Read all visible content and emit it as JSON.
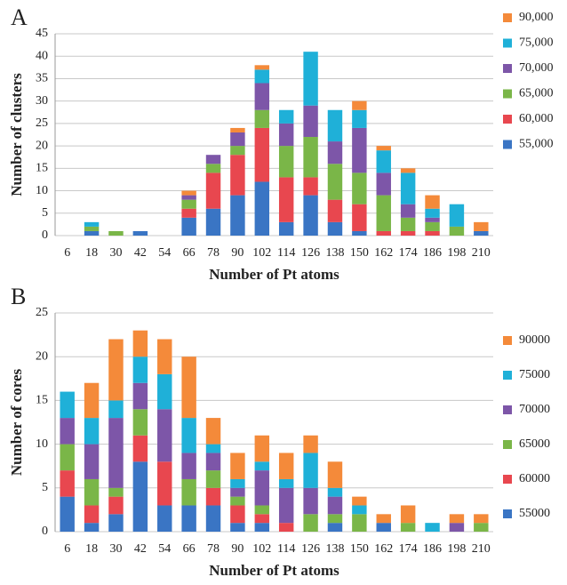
{
  "chart_data": [
    {
      "type": "bar",
      "stacked": true,
      "label": "A",
      "ylabel": "Number of clusters",
      "xlabel": "Number of Pt atoms",
      "categories": [
        "6",
        "18",
        "30",
        "42",
        "54",
        "66",
        "78",
        "90",
        "102",
        "114",
        "126",
        "138",
        "150",
        "162",
        "174",
        "186",
        "198",
        "210"
      ],
      "ylim": [
        0,
        45
      ],
      "yticks": [
        0,
        5,
        10,
        15,
        20,
        25,
        30,
        35,
        40,
        45
      ],
      "grid": true,
      "series": [
        {
          "name": "55,000",
          "color": "#3a75c4",
          "values": [
            0,
            1,
            0,
            1,
            0,
            4,
            6,
            9,
            12,
            3,
            9,
            3,
            1,
            0,
            0,
            0,
            0,
            1
          ]
        },
        {
          "name": "60,000",
          "color": "#e8474f",
          "values": [
            0,
            0,
            0,
            0,
            0,
            2,
            8,
            9,
            12,
            10,
            4,
            5,
            6,
            1,
            1,
            1,
            0,
            0
          ]
        },
        {
          "name": "65,000",
          "color": "#7ab648",
          "values": [
            0,
            1,
            1,
            0,
            0,
            2,
            2,
            2,
            4,
            7,
            9,
            8,
            7,
            8,
            3,
            2,
            2,
            0
          ]
        },
        {
          "name": "70,000",
          "color": "#7d56a8",
          "values": [
            0,
            0,
            0,
            0,
            0,
            1,
            2,
            3,
            6,
            5,
            7,
            5,
            10,
            5,
            3,
            1,
            0,
            0
          ]
        },
        {
          "name": "75,000",
          "color": "#1fb0d8",
          "values": [
            0,
            1,
            0,
            0,
            0,
            0,
            0,
            0,
            3,
            3,
            12,
            7,
            4,
            5,
            7,
            2,
            5,
            0
          ]
        },
        {
          "name": "90,000",
          "color": "#f48a3a",
          "values": [
            0,
            0,
            0,
            0,
            0,
            1,
            0,
            1,
            1,
            0,
            0,
            0,
            2,
            1,
            1,
            3,
            0,
            2
          ]
        }
      ]
    },
    {
      "type": "bar",
      "stacked": true,
      "label": "B",
      "ylabel": "Number of cores",
      "xlabel": "Number of Pt atoms",
      "categories": [
        "6",
        "18",
        "30",
        "42",
        "54",
        "66",
        "78",
        "90",
        "102",
        "114",
        "126",
        "138",
        "150",
        "162",
        "174",
        "186",
        "198",
        "210"
      ],
      "ylim": [
        0,
        25
      ],
      "yticks": [
        0,
        5,
        10,
        15,
        20,
        25
      ],
      "grid": true,
      "series": [
        {
          "name": "55000",
          "color": "#3a75c4",
          "values": [
            4,
            1,
            2,
            8,
            3,
            3,
            3,
            1,
            1,
            0,
            0,
            1,
            0,
            1,
            0,
            0,
            0,
            0
          ]
        },
        {
          "name": "60000",
          "color": "#e8474f",
          "values": [
            3,
            2,
            2,
            3,
            5,
            0,
            2,
            2,
            1,
            1,
            0,
            0,
            0,
            0,
            0,
            0,
            0,
            0
          ]
        },
        {
          "name": "65000",
          "color": "#7ab648",
          "values": [
            3,
            3,
            1,
            3,
            0,
            3,
            2,
            1,
            1,
            0,
            2,
            1,
            2,
            0,
            1,
            0,
            0,
            1
          ]
        },
        {
          "name": "70000",
          "color": "#7d56a8",
          "values": [
            3,
            4,
            8,
            3,
            6,
            3,
            2,
            1,
            4,
            4,
            3,
            2,
            0,
            0,
            0,
            0,
            1,
            0
          ]
        },
        {
          "name": "75000",
          "color": "#1fb0d8",
          "values": [
            3,
            3,
            2,
            3,
            4,
            4,
            1,
            1,
            1,
            1,
            4,
            1,
            1,
            0,
            0,
            1,
            0,
            0
          ]
        },
        {
          "name": "90000",
          "color": "#f48a3a",
          "values": [
            0,
            4,
            7,
            3,
            4,
            7,
            3,
            3,
            3,
            3,
            2,
            3,
            1,
            1,
            2,
            0,
            1,
            1
          ]
        }
      ]
    }
  ]
}
